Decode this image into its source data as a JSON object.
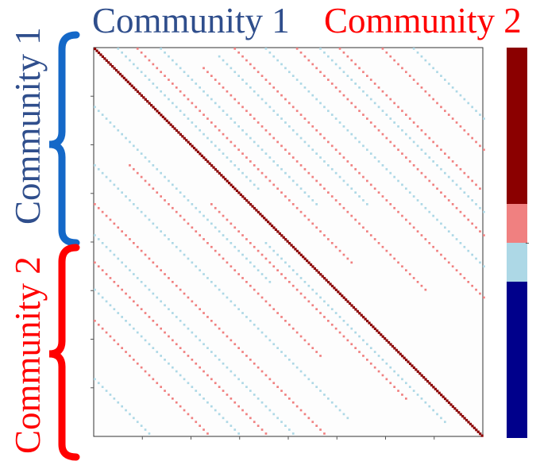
{
  "labels": {
    "community_1_top": "Community 1",
    "community_2_top": "Community 2",
    "community_1_side": "Community 1",
    "community_2_side": "Community 2"
  },
  "colors": {
    "community_1_text": "#2F4E8C",
    "community_2_text": "#FF0000",
    "bracket_1": "#1468C8",
    "bracket_2": "#FF0000",
    "diagonal": "#8B0000",
    "positive_edge": "#F08080",
    "negative_edge": "#ADD8E6"
  },
  "colorbar": {
    "segments": [
      {
        "name": "dark-red",
        "color": "#8B0000",
        "fraction": 0.4
      },
      {
        "name": "light-red",
        "color": "#F08080",
        "fraction": 0.1
      },
      {
        "name": "light-blue",
        "color": "#ADD8E6",
        "fraction": 0.1
      },
      {
        "name": "dark-blue",
        "color": "#00008B",
        "fraction": 0.4
      }
    ]
  },
  "matrix": {
    "grid_size": 200,
    "community_split": 0.38,
    "diagonal_bands": [
      {
        "community": "positive",
        "offset": 0.11,
        "start": 0.0,
        "end": 0.55
      },
      {
        "community": "positive",
        "offset": 0.23,
        "start": 0.05,
        "end": 0.62
      },
      {
        "community": "positive",
        "offset": 0.36,
        "start": 0.0,
        "end": 0.64
      },
      {
        "community": "positive",
        "offset": 0.52,
        "start": 0.0,
        "end": 0.48
      },
      {
        "community": "positive",
        "offset": 0.63,
        "start": 0.0,
        "end": 0.36
      },
      {
        "community": "positive",
        "offset": 0.74,
        "start": 0.0,
        "end": 0.26
      },
      {
        "community": "positive",
        "offset": -0.1,
        "start": 0.4,
        "end": 0.9
      },
      {
        "community": "positive",
        "offset": -0.21,
        "start": 0.3,
        "end": 0.79
      },
      {
        "community": "positive",
        "offset": -0.4,
        "start": 0.4,
        "end": 1.0
      },
      {
        "community": "positive",
        "offset": -0.55,
        "start": 0.55,
        "end": 1.0
      },
      {
        "community": "positive",
        "offset": -0.7,
        "start": 0.7,
        "end": 1.0
      },
      {
        "community": "negative",
        "offset": 0.06,
        "start": 0.0,
        "end": 0.36
      },
      {
        "community": "negative",
        "offset": 0.17,
        "start": 0.0,
        "end": 0.4
      },
      {
        "community": "negative",
        "offset": 0.3,
        "start": 0.02,
        "end": 0.4
      },
      {
        "community": "negative",
        "offset": 0.44,
        "start": 0.0,
        "end": 0.56
      },
      {
        "community": "negative",
        "offset": 0.58,
        "start": 0.0,
        "end": 0.42
      },
      {
        "community": "negative",
        "offset": 0.82,
        "start": 0.0,
        "end": 0.18
      },
      {
        "community": "negative",
        "offset": -0.06,
        "start": 0.5,
        "end": 0.96
      },
      {
        "community": "negative",
        "offset": -0.15,
        "start": 0.15,
        "end": 0.6
      },
      {
        "community": "negative",
        "offset": -0.3,
        "start": 0.3,
        "end": 0.95
      },
      {
        "community": "negative",
        "offset": -0.48,
        "start": 0.48,
        "end": 1.0
      },
      {
        "community": "negative",
        "offset": -0.62,
        "start": 0.62,
        "end": 1.0
      },
      {
        "community": "negative",
        "offset": -0.85,
        "start": 0.85,
        "end": 1.0
      }
    ]
  }
}
